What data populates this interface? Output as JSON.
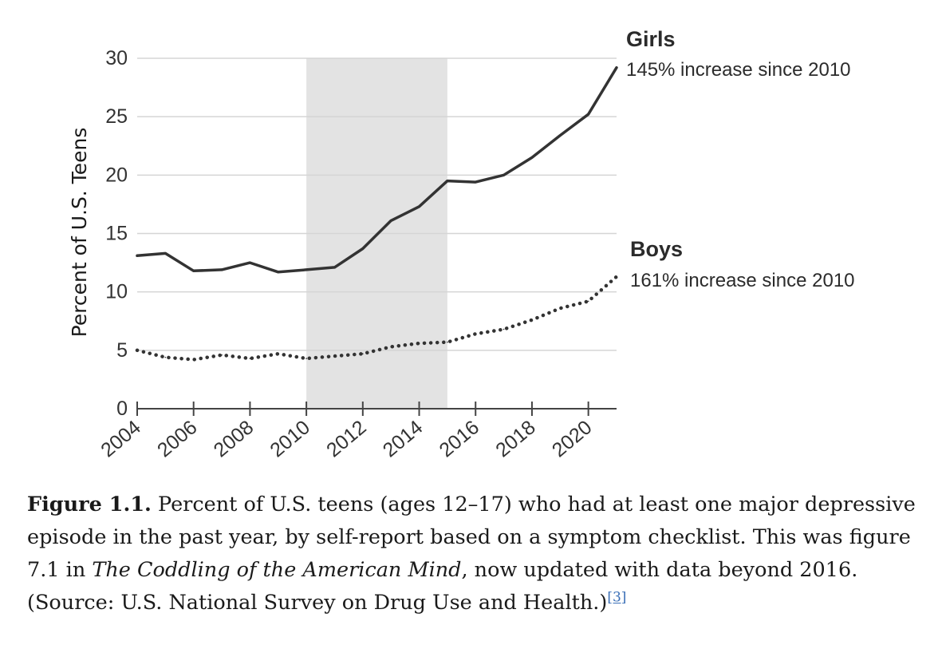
{
  "chart_data": {
    "type": "line",
    "ylabel": "Percent of U.S. Teens",
    "ylim": [
      0,
      30
    ],
    "yticks": [
      0,
      5,
      10,
      15,
      20,
      25,
      30
    ],
    "xlim": [
      2004,
      2021
    ],
    "xticks": [
      2004,
      2006,
      2008,
      2010,
      2012,
      2014,
      2016,
      2018,
      2020
    ],
    "grid": true,
    "shaded_region": [
      2010,
      2015
    ],
    "series": [
      {
        "name": "Girls",
        "annotation": "145% increase since 2010",
        "style": "solid",
        "color": "#333333",
        "x": [
          2004,
          2005,
          2006,
          2007,
          2008,
          2009,
          2010,
          2011,
          2012,
          2013,
          2014,
          2015,
          2016,
          2017,
          2018,
          2019,
          2020,
          2021
        ],
        "values": [
          13.1,
          13.3,
          11.8,
          11.9,
          12.5,
          11.7,
          11.9,
          12.1,
          13.7,
          16.1,
          17.3,
          19.5,
          19.4,
          20.0,
          21.5,
          23.4,
          25.2,
          29.2
        ]
      },
      {
        "name": "Boys",
        "annotation": "161% increase since 2010",
        "style": "dotted",
        "color": "#333333",
        "x": [
          2004,
          2005,
          2006,
          2007,
          2008,
          2009,
          2010,
          2011,
          2012,
          2013,
          2014,
          2015,
          2016,
          2017,
          2018,
          2019,
          2020,
          2021
        ],
        "values": [
          5.0,
          4.4,
          4.2,
          4.6,
          4.3,
          4.7,
          4.3,
          4.5,
          4.7,
          5.3,
          5.6,
          5.7,
          6.4,
          6.8,
          7.6,
          8.6,
          9.2,
          11.3
        ]
      }
    ]
  },
  "caption": {
    "label": "Figure 1.1.",
    "text_1": " Percent of U.S. teens (ages 12–17) who had at least one major depressive episode in the past year, by self-report based on a symptom checklist. This was fig­ure 7.1 in ",
    "book_title": "The Coddling of the American Mind",
    "text_2": ", now updated with data beyond 2016. (Source: U.S. National Survey on Drug Use and Health.)",
    "footnote": "[3]"
  },
  "colors": {
    "shade": "#e3e3e3",
    "grid": "#d5d5d5",
    "axis": "#444444",
    "line": "#333333"
  }
}
